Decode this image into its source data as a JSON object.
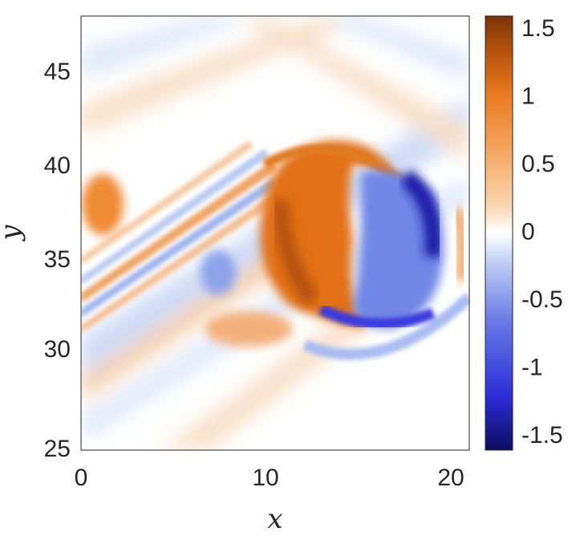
{
  "chart_data": {
    "type": "heatmap",
    "title": "",
    "xlabel": "x",
    "ylabel": "y",
    "xlim": [
      0,
      21
    ],
    "ylim": [
      25,
      48
    ],
    "x_ticks": [
      0,
      10,
      20
    ],
    "x_tick_labels": [
      "0",
      "10",
      "20"
    ],
    "y_ticks": [
      25,
      30,
      35,
      40,
      45
    ],
    "y_tick_labels": [
      "25",
      "30",
      "35",
      "40",
      "45"
    ],
    "colorbar": {
      "range": [
        -1.6,
        1.6
      ],
      "ticks": [
        1.5,
        1,
        0.5,
        0,
        -0.5,
        -1,
        -1.5
      ],
      "tick_labels": [
        "1.5",
        "1",
        "0.5",
        "0",
        "-0.5",
        "-1",
        "-1.5"
      ],
      "colormap": [
        "#0d0d60",
        "#2b2bd6",
        "#6a7ce8",
        "#b9cbf5",
        "#ffffff",
        "#f7cfa6",
        "#f4a35a",
        "#e97a1f",
        "#b5520c",
        "#7a3206"
      ]
    },
    "grid": false,
    "field_description": "Vortex pattern: orange (positive) crescent around x 10-14, y 32-41; dark blue (negative) core around x 15-19, y 31-39; diagonal alternating orange/blue bands from lower-left to upper-right."
  }
}
